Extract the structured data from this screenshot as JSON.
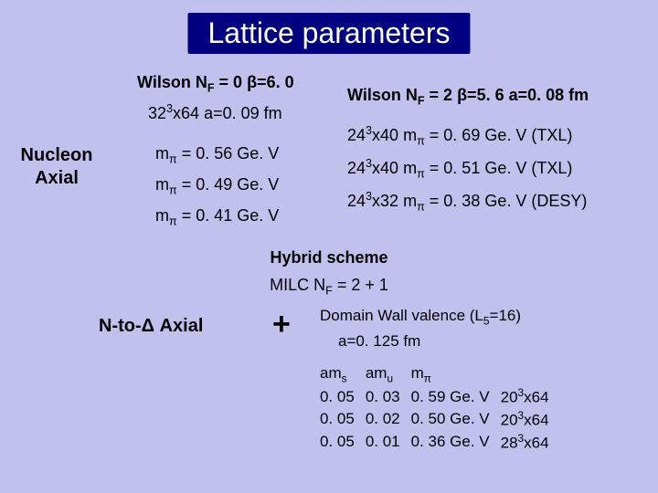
{
  "title": "Lattice parameters",
  "left_label_line1": "Nucleon",
  "left_label_line2": "Axial",
  "wilson0": {
    "header_pre": "Wilson N",
    "header_sub": "F",
    "header_rest": " = 0  β=6. 0",
    "conf_pre": "32",
    "conf_sup": "3",
    "conf_post": "x64   a=0. 09 fm",
    "m1_pre": "m",
    "m1_sub": "π",
    "m1_rest": " = 0. 56 Ge. V",
    "m2_pre": "m",
    "m2_sub": "π",
    "m2_rest": " = 0. 49 Ge. V",
    "m3_pre": "m",
    "m3_sub": "π",
    "m3_rest": " = 0. 41 Ge. V"
  },
  "wilson2": {
    "header_pre": "Wilson N",
    "header_sub": "F",
    "header_rest": " = 2  β=5. 6  a=0. 08 fm",
    "r1_conf_pre": "24",
    "r1_conf_sup": "3",
    "r1_conf_post": "x40  m",
    "r1_msub": "π",
    "r1_rest": " = 0. 69 Ge. V    (TXL)",
    "r2_conf_pre": "24",
    "r2_conf_sup": "3",
    "r2_conf_post": "x40  m",
    "r2_msub": "π",
    "r2_rest": " = 0. 51 Ge. V    (TXL)",
    "r3_conf_pre": "24",
    "r3_conf_sup": "3",
    "r3_conf_post": "x32  m",
    "r3_msub": "π",
    "r3_rest": " = 0. 38 Ge. V  (DESY)"
  },
  "hybrid_label": "Hybrid scheme",
  "milc_pre": "MILC N",
  "milc_sub": "F",
  "milc_rest": " = 2 + 1",
  "ntod_label": "N-to-Δ Axial",
  "plus": "+",
  "dwv_pre": "Domain Wall valence (L",
  "dwv_sub": "5",
  "dwv_rest": "=16)",
  "a0125": "a=0. 125 fm",
  "table": {
    "h1_pre": "am",
    "h1_sub": "s",
    "h2_pre": "am",
    "h2_sub": "u",
    "h3_pre": "m",
    "h3_sub": "π",
    "rows": [
      {
        "c1": "0. 05",
        "c2": "0. 03",
        "c3": "0. 59 Ge. V",
        "c4_pre": "20",
        "c4_sup": "3",
        "c4_post": "x64"
      },
      {
        "c1": "0. 05",
        "c2": "0. 02",
        "c3": "0. 50 Ge. V",
        "c4_pre": "20",
        "c4_sup": "3",
        "c4_post": "x64"
      },
      {
        "c1": "0. 05",
        "c2": "0. 01",
        "c3": "0. 36 Ge. V",
        "c4_pre": "28",
        "c4_sup": "3",
        "c4_post": "x64"
      }
    ]
  }
}
